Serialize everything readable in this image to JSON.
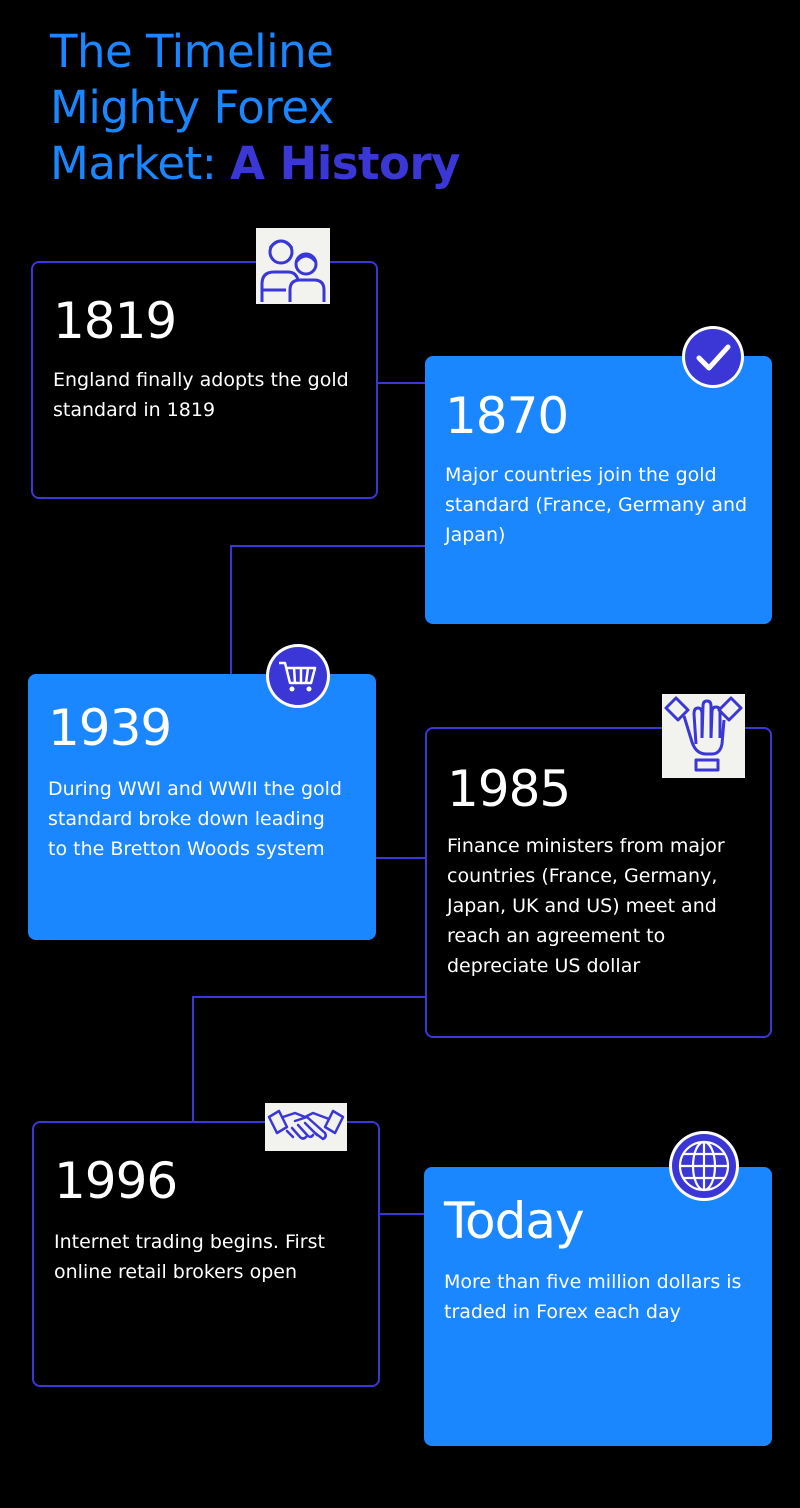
{
  "title": {
    "line1": "The Timeline",
    "line2": "Mighty Forex",
    "line3_plain": "Market:",
    "line3_strong": "A History"
  },
  "events": [
    {
      "year": "1819",
      "description": "England finally adopts the gold standard in 1819",
      "icon": "family-icon"
    },
    {
      "year": "1870",
      "description": "Major countries join the gold standard (France, Germany and Japan)",
      "icon": "check-circle-icon"
    },
    {
      "year": "1939",
      "description": "During WWI and WWII the gold standard broke down leading to the Bretton Woods system",
      "icon": "shopping-cart-icon"
    },
    {
      "year": "1985",
      "description": "Finance ministers from major countries (France, Germany, Japan, UK and US) meet and reach an agreement to depreciate US dollar",
      "icon": "hands-together-icon"
    },
    {
      "year": "1996",
      "description": "Internet trading begins. First online retail  brokers open",
      "icon": "handshake-icon"
    },
    {
      "year": "Today",
      "description": "More than five million dollars is traded in Forex each day",
      "icon": "globe-icon"
    }
  ],
  "colors": {
    "background": "#000000",
    "accent_blue": "#1a86ff",
    "accent_indigo": "#3b37d6",
    "text": "#ffffff"
  }
}
